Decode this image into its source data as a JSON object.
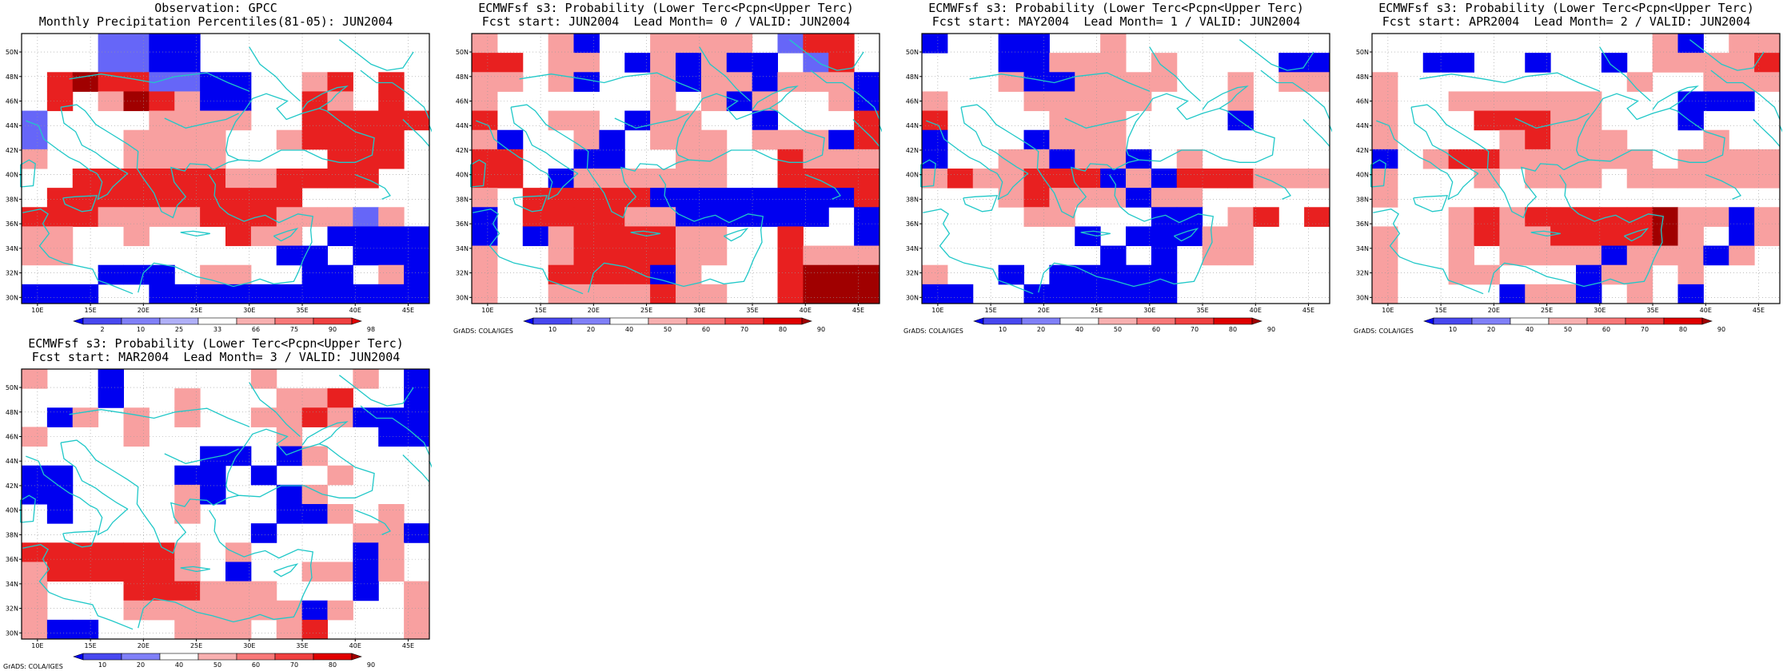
{
  "colors": {
    "blue": [
      "#0000f0",
      "#6666f8",
      "#a0a0f8"
    ],
    "red": [
      "#f8a0a0",
      "#f87070",
      "#e82020",
      "#c00000",
      "#a00000"
    ],
    "coast": "#20c8c8"
  },
  "panels": [
    {
      "id": "observation",
      "title_line1": "Observation: GPCC",
      "title_line2": "Monthly Precipitation Percentiles(81-05): JUN2004",
      "credit": "",
      "colorbar": {
        "labels": [
          "2",
          "10",
          "25",
          "33",
          "66",
          "75",
          "90",
          "98"
        ],
        "colors": [
          "#0000f0",
          "#4848f0",
          "#8080f8",
          "#b0b0f8",
          "#ffffff",
          "#f8b0b0",
          "#f87878",
          "#f04040",
          "#e00000"
        ]
      },
      "grid": [
        "0002211000000000",
        "0002211000000000",
        "0454422110034040",
        "0403543110043040",
        "2000033330044444",
        "2000333300344440",
        "3000333300004440",
        "0044444433444400",
        "0444444444400000",
        "4443333444333230",
        "3300300043301111",
        "3300000000110111",
        "0001110330011031",
        "1110011111111111"
      ]
    },
    {
      "id": "lead0",
      "title_line1": "ECMWFsf s3: Probability (Lower Terc<Pcpn<Upper Terc)",
      "title_line2": "Fcst start: JUN2004  Lead Month= 0 / VALID: JUN2004",
      "credit": "GrADS: COLA/IGES",
      "colorbar": {
        "labels": [
          "10",
          "20",
          "40",
          "50",
          "60",
          "70",
          "80",
          "90"
        ],
        "colors": [
          "#0000f0",
          "#4848f0",
          "#8080f8",
          "#ffffff",
          "#f8b0b0",
          "#f87878",
          "#f04040",
          "#e00000",
          "#a00000"
        ]
      },
      "grid": [
        "3003100333302440",
        "4403301313110240",
        "3303100313313331",
        "3000000303130031",
        "4003301330010004",
        "3100310333033314",
        "4400110033004333",
        "4401333333004444",
        "3044444111111114",
        "1044443311111101",
        "1013444433004001",
        "3003444433004333",
        "3004444130004555",
        "3003333433004555"
      ]
    },
    {
      "id": "lead1",
      "title_line1": "ECMWFsf s3: Probability (Lower Terc<Pcpn<Upper Terc)",
      "title_line2": "Fcst start: MAY2004  Lead Month= 1 / VALID: JUN2004",
      "credit": "GrADS: COLA/IGES",
      "colorbar": {
        "labels": [
          "10",
          "20",
          "40",
          "50",
          "60",
          "70",
          "80",
          "90"
        ],
        "colors": [
          "#0000f0",
          "#4848f0",
          "#8080f8",
          "#ffffff",
          "#f8b0b0",
          "#f87878",
          "#f04040",
          "#e00000",
          "#a00000"
        ]
      },
      "grid": [
        "1001100300000000",
        "0001133303000011",
        "0003113333003033",
        "3000333330003000",
        "4000033300001000",
        "1000133300000000",
        "1003313310300000",
        "3433444131444333",
        "0003433313300000",
        "0000330001103404",
        "0000001011133000",
        "0000000101033000",
        "3001011111000000",
        "1100111111000000"
      ]
    },
    {
      "id": "lead2",
      "title_line1": "ECMWFsf s3: Probability (Lower Terc<Pcpn<Upper Terc)",
      "title_line2": "Fcst start: APR2004  Lead Month= 2 / VALID: JUN2004",
      "credit": "GrADS: COLA/IGES",
      "colorbar": {
        "labels": [
          "10",
          "20",
          "40",
          "50",
          "60",
          "70",
          "80",
          "90"
        ],
        "colors": [
          "#0000f0",
          "#4848f0",
          "#8080f8",
          "#ffffff",
          "#f8b0b0",
          "#f87878",
          "#f04040",
          "#e00000",
          "#a00000"
        ]
      },
      "grid": [
        "0000000000031033",
        "0011001001033334",
        "3000000000300333",
        "3003333330001110",
        "3000444330001000",
        "3000034333000300",
        "1034433333303333",
        "3000303330333333",
        "3000000000000000",
        "0003434444453313",
        "3003433444453013",
        "3003033331333130",
        "3003300013303000",
        "3000013310301000"
      ]
    },
    {
      "id": "lead3",
      "title_line1": "ECMWFsf s3: Probability (Lower Terc<Pcpn<Upper Terc)",
      "title_line2": "Fcst start: MAR2004  Lead Month= 3 / VALID: JUN2004",
      "credit": "GrADS: COLA/IGES",
      "colorbar": {
        "labels": [
          "10",
          "20",
          "40",
          "50",
          "60",
          "70",
          "80",
          "90"
        ],
        "colors": [
          "#0000f0",
          "#4848f0",
          "#8080f8",
          "#ffffff",
          "#f8b0b0",
          "#f87878",
          "#f04040",
          "#e00000",
          "#a00000"
        ]
      },
      "grid": [
        "3001000003000301",
        "0001003000334001",
        "0130303003343111",
        "3000300000300011",
        "0000000110130000",
        "1100001101003000",
        "1100003100130000",
        "0100003000113030",
        "0000000001000331",
        "4444443030000130",
        "3444443010033130",
        "3000444333000103",
        "3000333333313003",
        "3110003330340003"
      ]
    }
  ],
  "lat_labels": [
    "30N",
    "32N",
    "34N",
    "36N",
    "38N",
    "40N",
    "42N",
    "44N",
    "46N",
    "48N",
    "50N"
  ],
  "lon_labels": [
    "10E",
    "15E",
    "20E",
    "25E",
    "30E",
    "35E",
    "40E",
    "45E"
  ]
}
